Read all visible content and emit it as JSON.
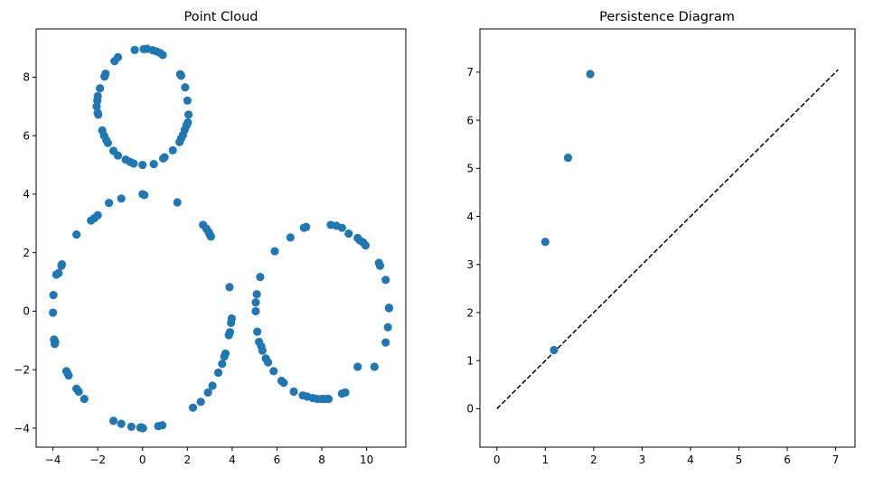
{
  "chart_data": [
    {
      "type": "scatter",
      "title": "Point Cloud",
      "xlabel": "",
      "ylabel": "",
      "xlim": [
        -4.75,
        11.75
      ],
      "ylim": [
        -4.65,
        9.65
      ],
      "xticks": [
        -4,
        -2,
        0,
        2,
        4,
        6,
        8,
        10
      ],
      "yticks": [
        -4,
        -2,
        0,
        2,
        4,
        6,
        8
      ],
      "grid": false,
      "color": "#1f77b4",
      "series": [
        {
          "points": [
            [
              0.2,
              8.97
            ],
            [
              0.45,
              8.92
            ],
            [
              0.62,
              8.88
            ],
            [
              0.78,
              8.83
            ],
            [
              0.9,
              8.76
            ],
            [
              -0.35,
              8.93
            ],
            [
              0.05,
              8.96
            ],
            [
              -1.1,
              8.68
            ],
            [
              -1.25,
              8.55
            ],
            [
              -1.65,
              8.12
            ],
            [
              -1.7,
              8.02
            ],
            [
              -1.9,
              7.62
            ],
            [
              -2.0,
              7.35
            ],
            [
              -2.02,
              7.2
            ],
            [
              -2.05,
              7.0
            ],
            [
              -2.0,
              6.78
            ],
            [
              -1.98,
              6.72
            ],
            [
              -1.8,
              6.18
            ],
            [
              -1.72,
              6.0
            ],
            [
              -1.62,
              5.85
            ],
            [
              -1.55,
              5.75
            ],
            [
              -1.3,
              5.48
            ],
            [
              -1.1,
              5.32
            ],
            [
              -0.75,
              5.18
            ],
            [
              -0.55,
              5.1
            ],
            [
              -0.4,
              5.05
            ],
            [
              0.0,
              5.0
            ],
            [
              0.5,
              5.03
            ],
            [
              0.92,
              5.22
            ],
            [
              0.98,
              5.26
            ],
            [
              1.35,
              5.5
            ],
            [
              1.65,
              5.78
            ],
            [
              1.72,
              5.9
            ],
            [
              1.8,
              6.02
            ],
            [
              1.88,
              6.2
            ],
            [
              1.96,
              6.35
            ],
            [
              2.02,
              6.45
            ],
            [
              2.05,
              6.72
            ],
            [
              2.0,
              7.2
            ],
            [
              1.9,
              7.65
            ],
            [
              1.72,
              8.05
            ],
            [
              1.68,
              8.1
            ],
            [
              0.0,
              4.0
            ],
            [
              0.08,
              3.97
            ],
            [
              -1.5,
              3.7
            ],
            [
              -0.95,
              3.85
            ],
            [
              1.55,
              3.72
            ],
            [
              -2.0,
              3.28
            ],
            [
              -2.15,
              3.18
            ],
            [
              -2.3,
              3.1
            ],
            [
              -2.95,
              2.62
            ],
            [
              -3.6,
              1.6
            ],
            [
              -3.62,
              1.55
            ],
            [
              -3.75,
              1.3
            ],
            [
              -3.85,
              1.25
            ],
            [
              -3.98,
              0.55
            ],
            [
              -4.0,
              -0.05
            ],
            [
              -3.95,
              -0.97
            ],
            [
              -3.9,
              -1.05
            ],
            [
              -3.92,
              -1.12
            ],
            [
              -3.4,
              -2.05
            ],
            [
              -3.35,
              -2.12
            ],
            [
              -3.3,
              -2.2
            ],
            [
              -2.95,
              -2.65
            ],
            [
              -2.85,
              -2.75
            ],
            [
              -2.6,
              -3.0
            ],
            [
              -1.3,
              -3.75
            ],
            [
              -0.95,
              -3.85
            ],
            [
              -0.5,
              -3.95
            ],
            [
              -0.1,
              -3.98
            ],
            [
              0.02,
              -4.0
            ],
            [
              -0.05,
              -3.97
            ],
            [
              0.7,
              -3.93
            ],
            [
              0.88,
              -3.9
            ],
            [
              2.25,
              -3.3
            ],
            [
              2.6,
              -3.1
            ],
            [
              2.92,
              -2.78
            ],
            [
              3.12,
              -2.55
            ],
            [
              3.38,
              -2.1
            ],
            [
              3.55,
              -1.8
            ],
            [
              3.65,
              -1.55
            ],
            [
              3.7,
              -1.45
            ],
            [
              3.85,
              -0.82
            ],
            [
              3.9,
              -0.72
            ],
            [
              3.95,
              -0.4
            ],
            [
              3.98,
              -0.25
            ],
            [
              3.88,
              0.82
            ],
            [
              2.7,
              2.95
            ],
            [
              2.85,
              2.82
            ],
            [
              2.95,
              2.7
            ],
            [
              3.0,
              2.62
            ],
            [
              3.05,
              2.55
            ],
            [
              5.1,
              0.58
            ],
            [
              5.05,
              0.3
            ],
            [
              5.05,
              0.0
            ],
            [
              5.12,
              -0.7
            ],
            [
              5.2,
              -1.05
            ],
            [
              5.3,
              -1.2
            ],
            [
              5.35,
              -1.35
            ],
            [
              5.5,
              -1.62
            ],
            [
              5.6,
              -1.75
            ],
            [
              5.85,
              -2.05
            ],
            [
              6.2,
              -2.38
            ],
            [
              6.3,
              -2.45
            ],
            [
              6.75,
              -2.75
            ],
            [
              7.15,
              -2.88
            ],
            [
              7.35,
              -2.92
            ],
            [
              7.6,
              -2.97
            ],
            [
              7.8,
              -3.0
            ],
            [
              8.0,
              -3.0
            ],
            [
              8.1,
              -3.0
            ],
            [
              8.25,
              -3.0
            ],
            [
              8.3,
              -3.0
            ],
            [
              8.9,
              -2.82
            ],
            [
              9.05,
              -2.78
            ],
            [
              9.6,
              -1.9
            ],
            [
              10.35,
              -1.9
            ],
            [
              10.85,
              -1.07
            ],
            [
              10.95,
              -0.55
            ],
            [
              11.0,
              0.1
            ],
            [
              11.0,
              0.12
            ],
            [
              10.85,
              1.07
            ],
            [
              10.6,
              1.55
            ],
            [
              10.55,
              1.65
            ],
            [
              9.95,
              2.25
            ],
            [
              9.85,
              2.35
            ],
            [
              9.7,
              2.42
            ],
            [
              9.6,
              2.5
            ],
            [
              9.2,
              2.65
            ],
            [
              8.9,
              2.85
            ],
            [
              8.65,
              2.92
            ],
            [
              8.4,
              2.95
            ],
            [
              7.3,
              2.88
            ],
            [
              7.2,
              2.85
            ],
            [
              6.6,
              2.52
            ],
            [
              5.9,
              2.05
            ],
            [
              5.25,
              1.17
            ]
          ]
        }
      ]
    },
    {
      "type": "scatter",
      "title": "Persistence Diagram",
      "xlabel": "",
      "ylabel": "",
      "xlim": [
        -0.35,
        7.4
      ],
      "ylim": [
        -0.8,
        7.9
      ],
      "xticks": [
        0,
        1,
        2,
        3,
        4,
        5,
        6,
        7
      ],
      "yticks": [
        0,
        1,
        2,
        3,
        4,
        5,
        6,
        7
      ],
      "grid": false,
      "color": "#1f77b4",
      "diagonal": {
        "from": [
          0,
          0
        ],
        "to": [
          7.05,
          7.05
        ],
        "style": "dashed",
        "color": "#000000"
      },
      "series": [
        {
          "points": [
            [
              1.93,
              6.96
            ],
            [
              1.47,
              5.22
            ],
            [
              1.0,
              3.47
            ],
            [
              1.18,
              1.22
            ]
          ]
        }
      ]
    }
  ]
}
